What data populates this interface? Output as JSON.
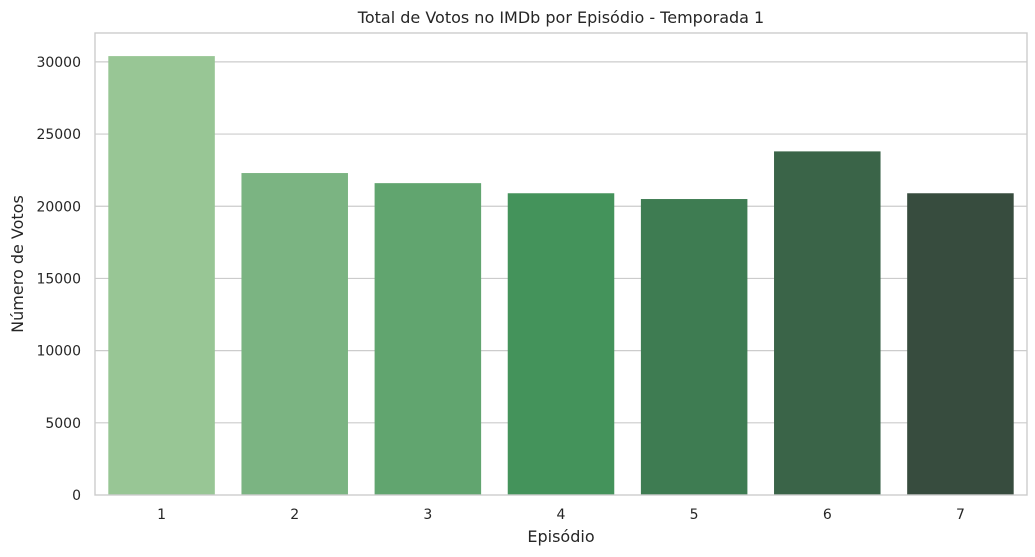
{
  "chart_data": {
    "type": "bar",
    "title": "Total de Votos no IMDb por Episódio - Temporada 1",
    "xlabel": "Episódio",
    "ylabel": "Número de Votos",
    "categories": [
      "1",
      "2",
      "3",
      "4",
      "5",
      "6",
      "7"
    ],
    "values": [
      30400,
      22300,
      21600,
      20900,
      20500,
      23800,
      20900
    ],
    "ylim": [
      0,
      32000
    ],
    "yticks": [
      0,
      5000,
      10000,
      15000,
      20000,
      25000,
      30000
    ],
    "ytick_labels": [
      "0",
      "5000",
      "10000",
      "15000",
      "20000",
      "25000",
      "30000"
    ],
    "grid": "horizontal",
    "colors": [
      "#98c695",
      "#7bb482",
      "#61a56f",
      "#44935b",
      "#3e7c52",
      "#3a6448",
      "#374c3e"
    ]
  }
}
